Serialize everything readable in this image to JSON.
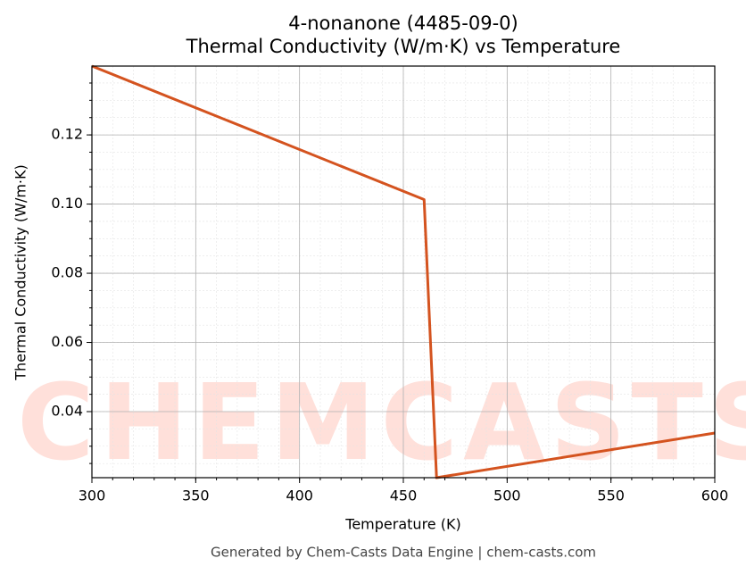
{
  "chart_data": {
    "type": "line",
    "title": "4-nonanone (4485-09-0)",
    "subtitle": "Thermal Conductivity (W/m·K) vs Temperature",
    "x_label": "Temperature (K)",
    "y_label": "Thermal Conductivity (W/m·K)",
    "footer": "Generated by Chem-Casts Data Engine | chem-casts.com",
    "watermark": "CHEMCASTS",
    "x": [
      300,
      460,
      466,
      600
    ],
    "series": [
      {
        "name": "Thermal Conductivity",
        "color": "#d4531f",
        "values": [
          0.1399,
          0.1013,
          0.0209,
          0.0338
        ]
      }
    ],
    "xlim": [
      300,
      600
    ],
    "ylim": [
      0.0209,
      0.1399
    ],
    "xticks": [
      300,
      350,
      400,
      450,
      500,
      550,
      600
    ],
    "yticks": [
      0.04,
      0.06,
      0.08,
      {
        "value": 0.1,
        "label": "0.10"
      },
      0.12
    ],
    "grid": true,
    "minor_grid": true
  }
}
